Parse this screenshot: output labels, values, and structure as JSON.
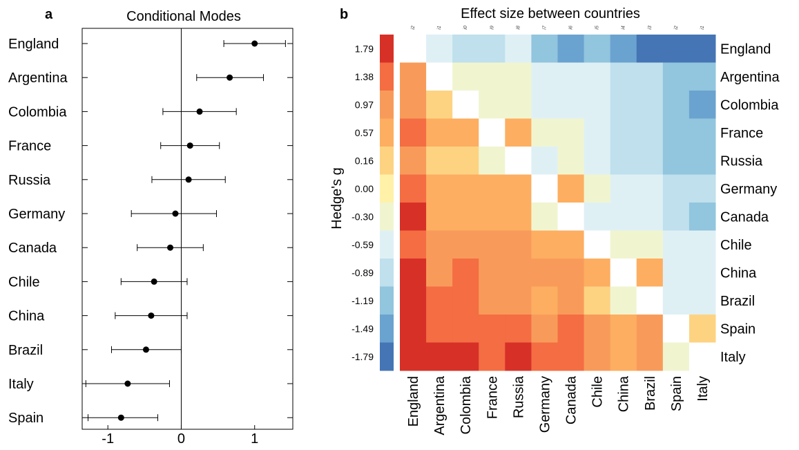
{
  "chart_data": [
    {
      "type": "scatter",
      "panel": "a",
      "title": "Conditional Modes",
      "categories": [
        "England",
        "Argentina",
        "Colombia",
        "France",
        "Russia",
        "Germany",
        "Canada",
        "Chile",
        "China",
        "Brazil",
        "Italy",
        "Spain"
      ],
      "values": [
        1.0,
        0.66,
        0.25,
        0.12,
        0.1,
        -0.08,
        -0.15,
        -0.37,
        -0.41,
        -0.48,
        -0.73,
        -0.82
      ],
      "lower": [
        0.58,
        0.21,
        -0.25,
        -0.28,
        -0.4,
        -0.68,
        -0.6,
        -0.82,
        -0.9,
        -0.95,
        -1.3,
        -1.27
      ],
      "upper": [
        1.42,
        1.12,
        0.75,
        0.52,
        0.6,
        0.48,
        0.3,
        0.08,
        0.08,
        0.0,
        -0.16,
        -0.32
      ],
      "xticks": [
        "-1",
        "0",
        "1"
      ],
      "xtick_values": [
        -1,
        0,
        1
      ],
      "xlim": [
        -1.35,
        1.52
      ],
      "grid": false
    },
    {
      "type": "heatmap",
      "panel": "b",
      "title": "Effect size between countries",
      "rows": [
        "England",
        "Argentina",
        "Colombia",
        "France",
        "Russia",
        "Germany",
        "Canada",
        "Chile",
        "China",
        "Brazil",
        "Spain",
        "Italy"
      ],
      "cols": [
        "England",
        "Argentina",
        "Colombia",
        "France",
        "Russia",
        "Germany",
        "Canada",
        "Chile",
        "China",
        "Brazil",
        "Spain",
        "Italy"
      ],
      "top_labels": [
        "i2",
        "i1",
        "i0",
        "i9",
        "i8",
        "i7",
        "i6",
        "i5",
        "i4",
        "i3",
        "i2",
        "i1"
      ],
      "legend_title": "Hedge's g",
      "legend_ticks": [
        "1.79",
        "1.38",
        "0.97",
        "0.57",
        "0.16",
        "0.00",
        "-0.30",
        "-0.59",
        "-0.89",
        "-1.19",
        "-1.49",
        "-1.79"
      ],
      "legend_colors": [
        "#d73027",
        "#f46d43",
        "#f89b5a",
        "#fdae61",
        "#fdd382",
        "#fff1a8",
        "#f0f5d0",
        "#dff0f5",
        "#bfe0ec",
        "#92c5de",
        "#6aa3cf",
        "#4575b4"
      ],
      "matrix": [
        [
          null,
          -0.59,
          -0.89,
          -0.89,
          -0.59,
          -1.19,
          -1.49,
          -1.19,
          -1.49,
          -1.79,
          -1.79,
          -1.79
        ],
        [
          0.97,
          null,
          -0.3,
          -0.3,
          -0.3,
          -0.59,
          -0.59,
          -0.59,
          -0.89,
          -0.89,
          -1.19,
          -1.19
        ],
        [
          0.97,
          0.16,
          null,
          -0.3,
          -0.3,
          -0.59,
          -0.59,
          -0.59,
          -0.89,
          -0.89,
          -1.19,
          -1.49
        ],
        [
          1.38,
          0.57,
          0.57,
          null,
          0.57,
          -0.3,
          -0.3,
          -0.59,
          -0.89,
          -0.89,
          -1.19,
          -1.19
        ],
        [
          0.97,
          0.16,
          0.16,
          -0.3,
          null,
          -0.59,
          -0.3,
          -0.59,
          -0.89,
          -0.89,
          -1.19,
          -1.19
        ],
        [
          1.38,
          0.57,
          0.57,
          0.57,
          0.57,
          null,
          0.57,
          -0.3,
          -0.59,
          -0.59,
          -0.89,
          -0.89
        ],
        [
          1.79,
          0.57,
          0.57,
          0.57,
          0.57,
          -0.3,
          null,
          -0.59,
          -0.59,
          -0.59,
          -0.89,
          -1.19
        ],
        [
          1.38,
          0.97,
          0.97,
          0.97,
          0.97,
          0.57,
          0.57,
          null,
          -0.3,
          -0.3,
          -0.59,
          -0.59
        ],
        [
          1.79,
          0.97,
          1.38,
          0.97,
          0.97,
          0.97,
          0.97,
          0.57,
          null,
          0.57,
          -0.59,
          -0.59
        ],
        [
          1.79,
          1.38,
          1.38,
          0.97,
          0.97,
          0.57,
          0.97,
          0.16,
          -0.3,
          null,
          -0.59,
          -0.59
        ],
        [
          1.79,
          1.38,
          1.38,
          1.38,
          1.38,
          0.97,
          1.38,
          0.97,
          0.57,
          0.97,
          null,
          0.16
        ],
        [
          1.79,
          1.79,
          1.79,
          1.38,
          1.79,
          1.38,
          1.38,
          0.97,
          0.57,
          0.97,
          -0.3,
          null
        ]
      ]
    }
  ]
}
